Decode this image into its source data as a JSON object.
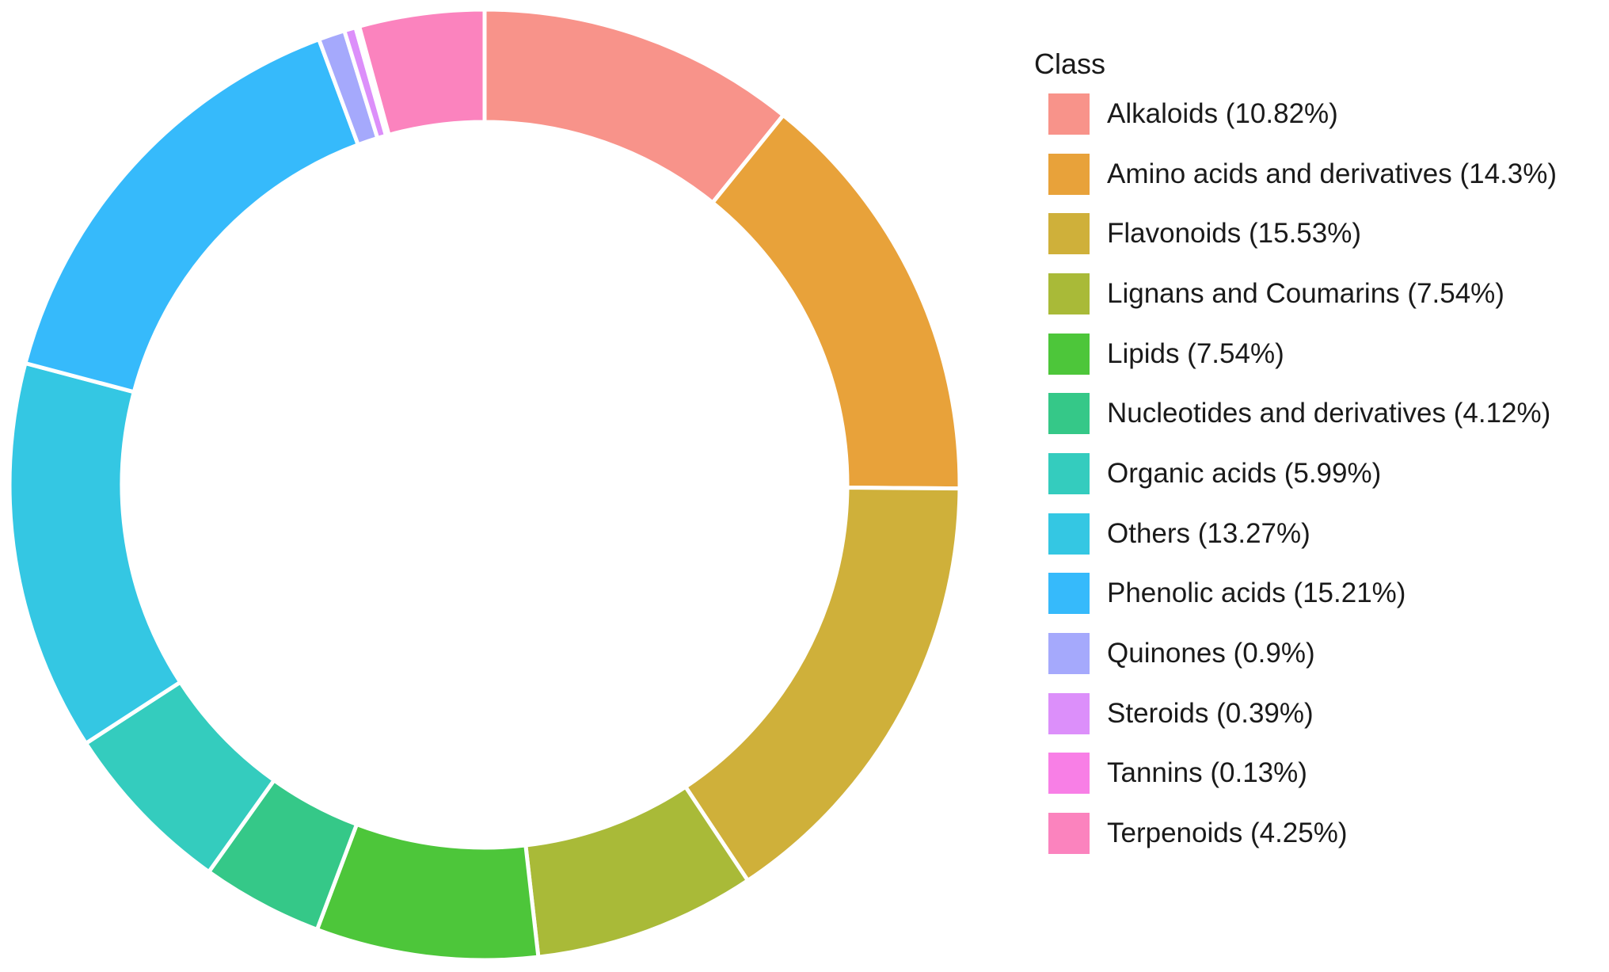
{
  "chart_data": {
    "type": "pie",
    "variant": "donut",
    "title": "",
    "legend_title": "Class",
    "legend_position": "right",
    "slices": [
      {
        "label": "Alkaloids (10.82%)",
        "value": 10.82,
        "color": "#F8938A"
      },
      {
        "label": "Amino acids and derivatives (14.3%)",
        "value": 14.3,
        "color": "#E8A23A"
      },
      {
        "label": "Flavonoids (15.53%)",
        "value": 15.53,
        "color": "#CFB03A"
      },
      {
        "label": "Lignans and Coumarins (7.54%)",
        "value": 7.54,
        "color": "#A9BA38"
      },
      {
        "label": "Lipids (7.54%)",
        "value": 7.54,
        "color": "#4DC63A"
      },
      {
        "label": "Nucleotides and derivatives (4.12%)",
        "value": 4.12,
        "color": "#35C888"
      },
      {
        "label": "Organic acids (5.99%)",
        "value": 5.99,
        "color": "#34CCBE"
      },
      {
        "label": "Others (13.27%)",
        "value": 13.27,
        "color": "#34C7E3"
      },
      {
        "label": "Phenolic acids (15.21%)",
        "value": 15.21,
        "color": "#36BAFB"
      },
      {
        "label": "Quinones (0.9%)",
        "value": 0.9,
        "color": "#A5A9FC"
      },
      {
        "label": "Steroids (0.39%)",
        "value": 0.39,
        "color": "#DC8FFA"
      },
      {
        "label": "Tannins (0.13%)",
        "value": 0.13,
        "color": "#F87FE6"
      },
      {
        "label": "Terpenoids (4.25%)",
        "value": 4.25,
        "color": "#FB83BE"
      }
    ]
  }
}
